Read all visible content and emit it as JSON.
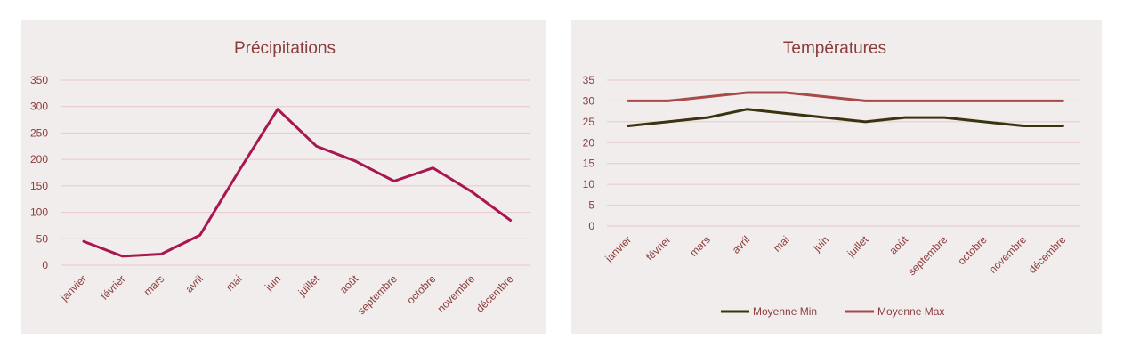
{
  "chart_data": [
    {
      "type": "line",
      "title": "Précipitations",
      "xlabel": "",
      "ylabel": "",
      "categories": [
        "janvier",
        "février",
        "mars",
        "avril",
        "mai",
        "juin",
        "juillet",
        "août",
        "septembre",
        "octobre",
        "novembre",
        "décembre"
      ],
      "ylim": [
        0,
        350
      ],
      "yticks": [
        "0",
        "50",
        "100",
        "150",
        "200",
        "250",
        "300",
        "350"
      ],
      "grid": true,
      "series": [
        {
          "color": "#a8174f",
          "values": [
            45,
            17,
            21,
            57,
            178,
            295,
            225,
            197,
            159,
            184,
            139,
            85
          ]
        }
      ]
    },
    {
      "type": "line",
      "title": "Températures",
      "xlabel": "",
      "ylabel": "",
      "categories": [
        "janvier",
        "février",
        "mars",
        "avril",
        "mai",
        "juin",
        "juillet",
        "août",
        "septembre",
        "octobre",
        "novembre",
        "décembre"
      ],
      "ylim": [
        0,
        35
      ],
      "yticks": [
        "0",
        "5",
        "10",
        "15",
        "20",
        "25",
        "30",
        "35"
      ],
      "grid": true,
      "legend": "bottom",
      "series": [
        {
          "name": "Moyenne Min",
          "color": "#3b3310",
          "values": [
            24,
            25,
            26,
            28,
            27,
            26,
            25,
            26,
            26,
            25,
            24,
            24
          ]
        },
        {
          "name": "Moyenne Max",
          "color": "#a84a4a",
          "values": [
            30,
            30,
            31,
            32,
            32,
            31,
            30,
            30,
            30,
            30,
            30,
            30
          ]
        }
      ]
    }
  ]
}
